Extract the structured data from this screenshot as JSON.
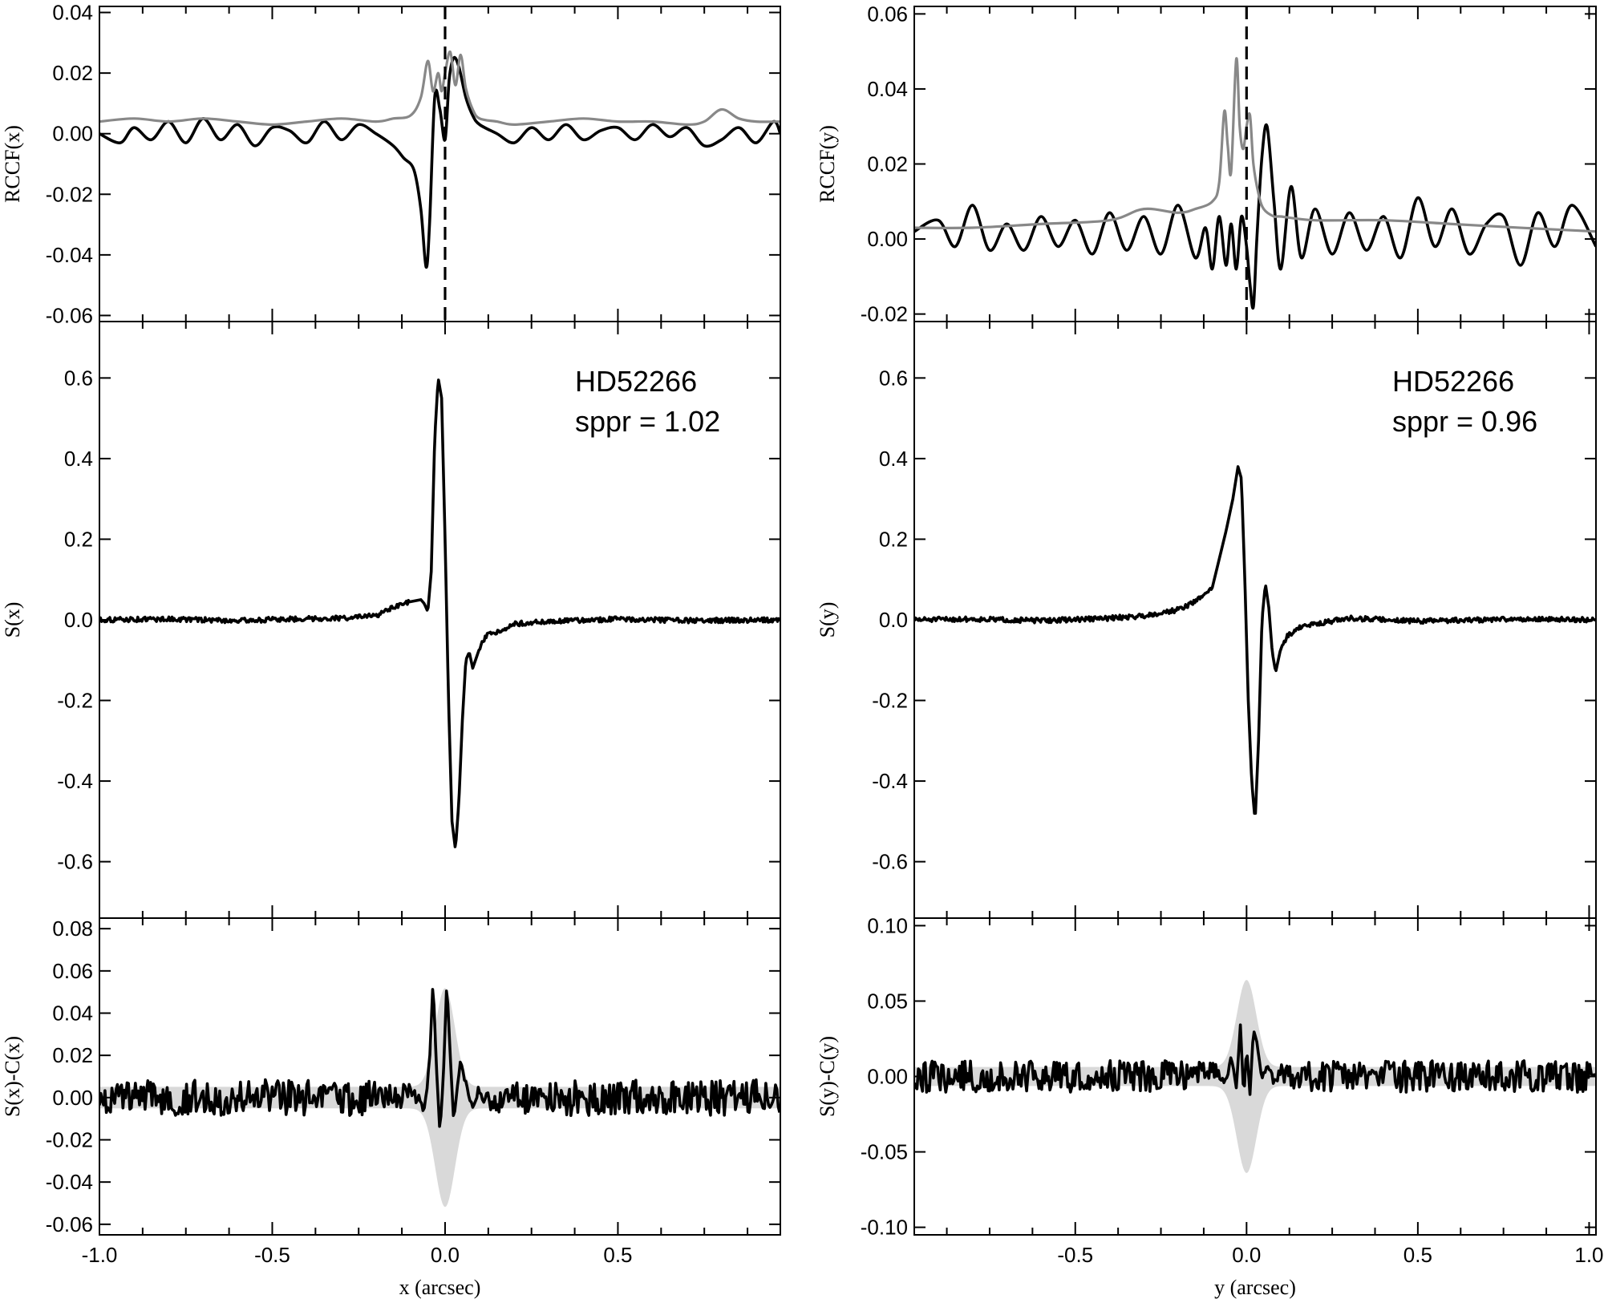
{
  "chart_data": [
    {
      "type": "line",
      "panel": "left-top",
      "ylabel": "RCCF(x)",
      "xlim": [
        -1.0,
        0.97
      ],
      "ylim": [
        -0.062,
        0.042
      ],
      "yticks": [
        "-0.06",
        "-0.04",
        "-0.02",
        "0.00",
        "0.02",
        "0.04"
      ],
      "vline_x": 0.0,
      "series": [
        {
          "color": "#000000",
          "x": [
            -1.0,
            -0.94,
            -0.9,
            -0.85,
            -0.8,
            -0.75,
            -0.7,
            -0.65,
            -0.6,
            -0.55,
            -0.5,
            -0.45,
            -0.4,
            -0.35,
            -0.3,
            -0.25,
            -0.2,
            -0.15,
            -0.12,
            -0.09,
            -0.07,
            -0.055,
            -0.045,
            -0.03,
            -0.015,
            0.0,
            0.012,
            0.025,
            0.04,
            0.06,
            0.08,
            0.1,
            0.15,
            0.2,
            0.25,
            0.3,
            0.35,
            0.4,
            0.45,
            0.5,
            0.55,
            0.6,
            0.65,
            0.7,
            0.75,
            0.8,
            0.85,
            0.9,
            0.95,
            0.97
          ],
          "y": [
            0.0,
            -0.003,
            0.002,
            -0.002,
            0.004,
            -0.003,
            0.005,
            -0.002,
            0.003,
            -0.004,
            0.002,
            0.001,
            -0.003,
            0.004,
            -0.002,
            0.003,
            0.0,
            -0.004,
            -0.008,
            -0.012,
            -0.025,
            -0.044,
            -0.03,
            0.012,
            0.008,
            -0.002,
            0.018,
            0.025,
            0.022,
            0.012,
            0.006,
            0.003,
            0.0,
            -0.003,
            0.002,
            -0.002,
            0.003,
            -0.002,
            0.001,
            0.002,
            -0.002,
            0.003,
            -0.001,
            0.002,
            -0.004,
            -0.002,
            0.002,
            -0.003,
            0.004,
            0.0
          ]
        },
        {
          "color": "#888888",
          "x": [
            -1.0,
            -0.9,
            -0.8,
            -0.7,
            -0.6,
            -0.5,
            -0.4,
            -0.3,
            -0.2,
            -0.15,
            -0.1,
            -0.07,
            -0.05,
            -0.035,
            -0.02,
            -0.01,
            0.0,
            0.015,
            0.03,
            0.045,
            0.06,
            0.08,
            0.1,
            0.15,
            0.2,
            0.3,
            0.4,
            0.5,
            0.6,
            0.7,
            0.75,
            0.8,
            0.85,
            0.9,
            0.97
          ],
          "y": [
            0.004,
            0.005,
            0.004,
            0.005,
            0.004,
            0.003,
            0.004,
            0.005,
            0.004,
            0.005,
            0.006,
            0.012,
            0.024,
            0.014,
            0.02,
            0.014,
            0.02,
            0.027,
            0.016,
            0.026,
            0.015,
            0.008,
            0.005,
            0.004,
            0.003,
            0.004,
            0.005,
            0.004,
            0.004,
            0.003,
            0.004,
            0.008,
            0.005,
            0.004,
            0.004
          ]
        }
      ]
    },
    {
      "type": "line",
      "panel": "left-middle",
      "ylabel": "S(x)",
      "xlim": [
        -1.0,
        0.97
      ],
      "ylim": [
        -0.74,
        0.74
      ],
      "yticks": [
        "-0.6",
        "-0.4",
        "-0.2",
        "0.0",
        "0.2",
        "0.4",
        "0.6"
      ],
      "annotations": [
        "HD52266",
        "sppr = 1.02"
      ],
      "series": [
        {
          "color": "#000000",
          "x": [
            -1.0,
            -0.8,
            -0.6,
            -0.4,
            -0.3,
            -0.2,
            -0.15,
            -0.1,
            -0.07,
            -0.06,
            -0.05,
            -0.04,
            -0.03,
            -0.02,
            -0.01,
            0.0,
            0.01,
            0.02,
            0.03,
            0.04,
            0.05,
            0.06,
            0.07,
            0.08,
            0.1,
            0.12,
            0.15,
            0.2,
            0.3,
            0.5,
            0.7,
            0.97
          ],
          "y": [
            0.0,
            0.002,
            -0.002,
            0.003,
            0.004,
            0.01,
            0.03,
            0.045,
            0.05,
            0.04,
            0.02,
            0.12,
            0.45,
            0.6,
            0.55,
            0.2,
            -0.2,
            -0.5,
            -0.57,
            -0.45,
            -0.25,
            -0.1,
            -0.08,
            -0.12,
            -0.07,
            -0.04,
            -0.03,
            -0.01,
            -0.004,
            0.002,
            -0.002,
            0.0
          ]
        }
      ]
    },
    {
      "type": "line",
      "panel": "left-bottom",
      "ylabel": "S(x)-C(x)",
      "xlabel": "x (arcsec)",
      "xlim": [
        -1.0,
        0.97
      ],
      "ylim": [
        -0.065,
        0.085
      ],
      "yticks": [
        "-0.06",
        "-0.04",
        "-0.02",
        "0.00",
        "0.02",
        "0.04",
        "0.06",
        "0.08"
      ],
      "xticks": [
        "-1.0",
        "-0.5",
        "0.0",
        "0.5"
      ],
      "series": [
        {
          "color": "#000000",
          "x": [
            -0.2,
            -0.1,
            -0.06,
            -0.045,
            -0.035,
            -0.025,
            -0.015,
            -0.005,
            0.005,
            0.015,
            0.025,
            0.035,
            0.045,
            0.06,
            0.08,
            0.1,
            0.15,
            0.2
          ],
          "y": [
            -0.004,
            0.006,
            -0.008,
            0.02,
            0.06,
            0.015,
            -0.017,
            0.01,
            0.055,
            0.02,
            -0.012,
            0.005,
            0.02,
            0.008,
            -0.005,
            0.004,
            -0.003,
            0.002
          ]
        }
      ]
    },
    {
      "type": "line",
      "panel": "right-top",
      "ylabel": "RCCF(y)",
      "xlim": [
        -0.97,
        1.02
      ],
      "ylim": [
        -0.022,
        0.062
      ],
      "yticks": [
        "-0.02",
        "0.00",
        "0.02",
        "0.04",
        "0.06"
      ],
      "vline_x": 0.0,
      "series": [
        {
          "color": "#000000",
          "x": [
            -0.97,
            -0.9,
            -0.85,
            -0.8,
            -0.75,
            -0.7,
            -0.65,
            -0.6,
            -0.55,
            -0.5,
            -0.45,
            -0.4,
            -0.35,
            -0.3,
            -0.25,
            -0.2,
            -0.15,
            -0.12,
            -0.1,
            -0.08,
            -0.06,
            -0.045,
            -0.03,
            -0.015,
            0.0,
            0.01,
            0.02,
            0.03,
            0.045,
            0.06,
            0.08,
            0.1,
            0.13,
            0.16,
            0.2,
            0.25,
            0.3,
            0.35,
            0.4,
            0.45,
            0.5,
            0.55,
            0.6,
            0.65,
            0.7,
            0.75,
            0.8,
            0.85,
            0.9,
            0.95,
            1.02
          ],
          "y": [
            0.002,
            0.005,
            -0.002,
            0.009,
            -0.003,
            0.004,
            -0.003,
            0.006,
            -0.002,
            0.005,
            -0.004,
            0.007,
            -0.003,
            0.006,
            -0.004,
            0.009,
            -0.005,
            0.003,
            -0.008,
            0.006,
            -0.007,
            0.004,
            -0.008,
            0.006,
            -0.002,
            -0.012,
            -0.018,
            0.0,
            0.022,
            0.03,
            0.01,
            -0.008,
            0.014,
            -0.005,
            0.008,
            -0.004,
            0.007,
            -0.003,
            0.006,
            -0.005,
            0.011,
            -0.002,
            0.008,
            -0.004,
            0.004,
            0.006,
            -0.007,
            0.007,
            -0.002,
            0.009,
            -0.002
          ]
        },
        {
          "color": "#888888",
          "x": [
            -0.97,
            -0.8,
            -0.6,
            -0.4,
            -0.3,
            -0.2,
            -0.15,
            -0.1,
            -0.08,
            -0.065,
            -0.055,
            -0.045,
            -0.03,
            -0.02,
            -0.01,
            0.0,
            0.01,
            0.02,
            0.035,
            0.05,
            0.08,
            0.1,
            0.2,
            0.4,
            0.6,
            0.8,
            1.02
          ],
          "y": [
            0.003,
            0.003,
            0.004,
            0.005,
            0.008,
            0.007,
            0.008,
            0.01,
            0.015,
            0.034,
            0.025,
            0.018,
            0.048,
            0.03,
            0.024,
            0.03,
            0.033,
            0.02,
            0.012,
            0.008,
            0.006,
            0.006,
            0.005,
            0.005,
            0.004,
            0.003,
            0.002
          ]
        }
      ]
    },
    {
      "type": "line",
      "panel": "right-middle",
      "ylabel": "S(y)",
      "xlim": [
        -0.97,
        1.02
      ],
      "ylim": [
        -0.74,
        0.74
      ],
      "yticks": [
        "-0.6",
        "-0.4",
        "-0.2",
        "0.0",
        "0.2",
        "0.4",
        "0.6"
      ],
      "annotations": [
        "HD52266",
        "sppr = 0.96"
      ],
      "series": [
        {
          "color": "#000000",
          "x": [
            -0.97,
            -0.8,
            -0.6,
            -0.4,
            -0.3,
            -0.2,
            -0.15,
            -0.1,
            -0.08,
            -0.06,
            -0.04,
            -0.025,
            -0.015,
            -0.005,
            0.005,
            0.015,
            0.025,
            0.035,
            0.045,
            0.055,
            0.065,
            0.075,
            0.085,
            0.1,
            0.12,
            0.15,
            0.2,
            0.3,
            0.5,
            0.8,
            1.02
          ],
          "y": [
            0.0,
            0.002,
            -0.002,
            0.004,
            0.01,
            0.025,
            0.045,
            0.08,
            0.15,
            0.22,
            0.3,
            0.38,
            0.35,
            0.1,
            -0.2,
            -0.4,
            -0.5,
            -0.3,
            0.0,
            0.09,
            0.03,
            -0.08,
            -0.13,
            -0.07,
            -0.04,
            -0.02,
            -0.01,
            0.004,
            -0.003,
            0.002,
            0.0
          ]
        }
      ]
    },
    {
      "type": "line",
      "panel": "right-bottom",
      "ylabel": "S(y)-C(y)",
      "xlabel": "y (arcsec)",
      "xlim": [
        -0.97,
        1.02
      ],
      "ylim": [
        -0.105,
        0.105
      ],
      "yticks": [
        "-0.10",
        "-0.05",
        "0.00",
        "0.05",
        "0.10"
      ],
      "xticks": [
        "-0.5",
        "0.0",
        "0.5",
        "1.0"
      ],
      "series": [
        {
          "color": "#000000",
          "x": [
            -0.2,
            -0.1,
            -0.06,
            -0.045,
            -0.03,
            -0.018,
            -0.008,
            0.0,
            0.01,
            0.02,
            0.03,
            0.045,
            0.06,
            0.08,
            0.1,
            0.15,
            0.2
          ],
          "y": [
            0.005,
            0.01,
            -0.005,
            0.015,
            -0.008,
            0.035,
            -0.015,
            0.02,
            -0.012,
            0.032,
            0.025,
            -0.003,
            0.01,
            -0.005,
            0.006,
            -0.004,
            0.003
          ]
        }
      ]
    }
  ]
}
